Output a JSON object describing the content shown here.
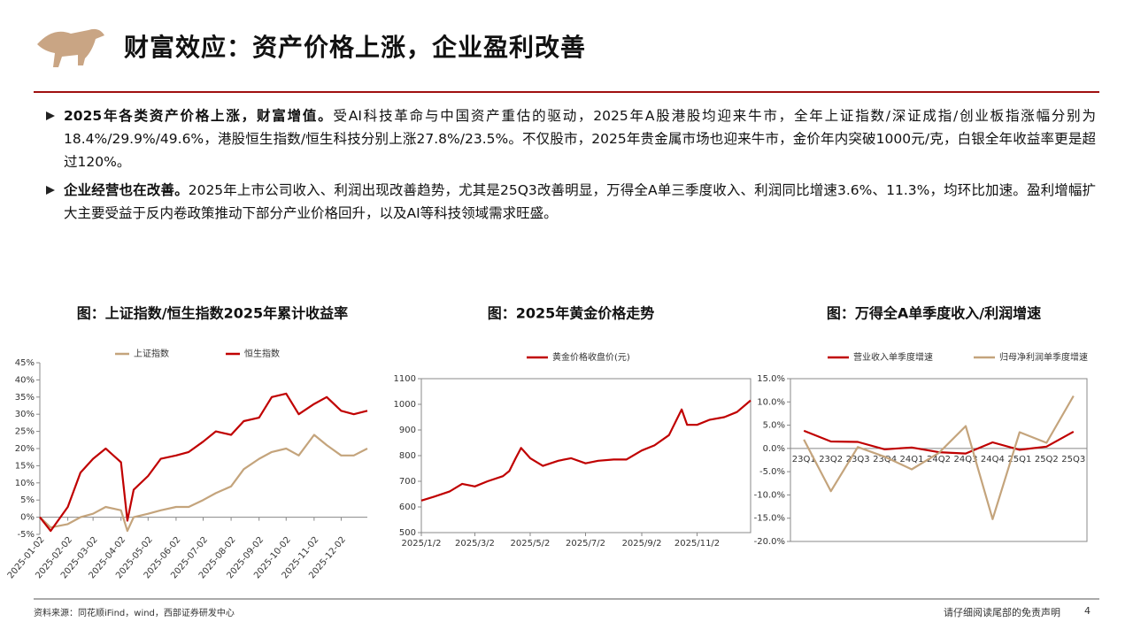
{
  "header": {
    "title": "财富效应：资产价格上涨，企业盈利改善"
  },
  "bullets": [
    {
      "lead": "2025年各类资产价格上涨，财富增值。",
      "body": "受AI科技革命与中国资产重估的驱动，2025年A股港股均迎来牛市，全年上证指数/深证成指/创业板指涨幅分别为18.4%/29.9%/49.6%，港股恒生指数/恒生科技分别上涨27.8%/23.5%。不仅股市，2025年贵金属市场也迎来牛市，金价年内突破1000元/克，白银全年收益率更是超过120%。"
    },
    {
      "lead": "企业经营也在改善。",
      "body": "2025年上市公司收入、利润出现改善趋势，尤其是25Q3改善明显，万得全A单三季度收入、利润同比增速3.6%、11.3%，均环比加速。盈利增幅扩大主要受益于反内卷政策推动下部分产业价格回升，以及AI等科技领域需求旺盛。"
    }
  ],
  "chart_data": [
    {
      "type": "line",
      "title": "图：上证指数/恒生指数2025年累计收益率",
      "legend": "top",
      "grid": false,
      "x": [
        "2025-01-02",
        "2025-01-14",
        "2025-02-02",
        "2025-02-16",
        "2025-03-02",
        "2025-03-16",
        "2025-04-02",
        "2025-04-09",
        "2025-04-16",
        "2025-05-02",
        "2025-05-16",
        "2025-06-02",
        "2025-06-16",
        "2025-07-02",
        "2025-07-16",
        "2025-08-02",
        "2025-08-16",
        "2025-09-02",
        "2025-09-16",
        "2025-10-02",
        "2025-10-16",
        "2025-11-02",
        "2025-11-16",
        "2025-12-02",
        "2025-12-16",
        "2025-12-31"
      ],
      "series": [
        {
          "name": "上证指数",
          "color": "#c4a47c",
          "values": [
            0,
            -3,
            -2,
            0,
            1,
            3,
            2,
            -4,
            0,
            1,
            2,
            3,
            3,
            5,
            7,
            9,
            14,
            17,
            19,
            20,
            18,
            24,
            21,
            18,
            18,
            20
          ]
        },
        {
          "name": "恒生指数",
          "color": "#c00000",
          "values": [
            0,
            -4,
            3,
            13,
            17,
            20,
            16,
            -1,
            8,
            12,
            17,
            18,
            19,
            22,
            25,
            24,
            28,
            29,
            35,
            36,
            30,
            33,
            35,
            31,
            30,
            31
          ]
        }
      ],
      "xlim": [
        "2025-01-02",
        "2025-12-31"
      ],
      "xticks": [
        "2025-01-02",
        "2025-02-02",
        "2025-03-02",
        "2025-04-02",
        "2025-05-02",
        "2025-06-02",
        "2025-07-02",
        "2025-08-02",
        "2025-09-02",
        "2025-10-02",
        "2025-11-02",
        "2025-12-02"
      ],
      "ylim": [
        -5,
        45
      ],
      "yticks": [
        {
          "value": -5,
          "label": "-5%"
        },
        {
          "value": 0,
          "label": "0%"
        },
        {
          "value": 5,
          "label": "5%"
        },
        {
          "value": 10,
          "label": "10%"
        },
        {
          "value": 15,
          "label": "15%"
        },
        {
          "value": 20,
          "label": "20%"
        },
        {
          "value": 25,
          "label": "25%"
        },
        {
          "value": 30,
          "label": "30%"
        },
        {
          "value": 35,
          "label": "35%"
        },
        {
          "value": 40,
          "label": "40%"
        },
        {
          "value": 45,
          "label": "45%"
        }
      ]
    },
    {
      "type": "line",
      "title": "图：2025年黄金价格走势",
      "legend": "top",
      "grid": false,
      "x": [
        "2025/1/2",
        "2025/1/16",
        "2025/2/2",
        "2025/2/16",
        "2025/3/2",
        "2025/3/16",
        "2025/4/2",
        "2025/4/9",
        "2025/4/16",
        "2025/4/22",
        "2025/5/2",
        "2025/5/16",
        "2025/6/2",
        "2025/6/16",
        "2025/7/2",
        "2025/7/16",
        "2025/8/2",
        "2025/8/16",
        "2025/9/2",
        "2025/9/16",
        "2025/10/2",
        "2025/10/16",
        "2025/10/22",
        "2025/11/2",
        "2025/11/16",
        "2025/12/2",
        "2025/12/16",
        "2025/12/31"
      ],
      "series": [
        {
          "name": "黄金价格收盘价(元)",
          "color": "#c00000",
          "values": [
            625,
            640,
            660,
            690,
            680,
            700,
            720,
            740,
            790,
            830,
            790,
            760,
            780,
            790,
            770,
            780,
            785,
            785,
            820,
            840,
            880,
            980,
            920,
            920,
            940,
            950,
            970,
            1015
          ]
        }
      ],
      "xlim": [
        "2025/1/2",
        "2025/12/31"
      ],
      "xticks": [
        "2025/1/2",
        "2025/3/2",
        "2025/5/2",
        "2025/7/2",
        "2025/9/2",
        "2025/11/2"
      ],
      "ylim": [
        500,
        1100
      ],
      "yticks": [
        500,
        600,
        700,
        800,
        900,
        1000,
        1100
      ]
    },
    {
      "type": "line",
      "title": "图：万得全A单季度收入/利润增速",
      "legend": "top",
      "grid": false,
      "categories": [
        "23Q1",
        "23Q2",
        "23Q3",
        "23Q4",
        "24Q1",
        "24Q2",
        "24Q3",
        "24Q4",
        "25Q1",
        "25Q2",
        "25Q3"
      ],
      "series": [
        {
          "name": "营业收入单季度增速",
          "color": "#c00000",
          "values": [
            3.8,
            1.5,
            1.4,
            -0.2,
            0.2,
            -0.8,
            -1.1,
            1.3,
            -0.3,
            0.4,
            3.6
          ]
        },
        {
          "name": "归母净利润单季度增速",
          "color": "#c4a47c",
          "values": [
            1.9,
            -9.2,
            0.3,
            -1.8,
            -4.5,
            -1.0,
            4.8,
            -15.2,
            3.5,
            1.2,
            11.3
          ]
        }
      ],
      "ylim": [
        -20,
        15
      ],
      "yticks": [
        {
          "value": -20,
          "label": "-20.0%"
        },
        {
          "value": -15,
          "label": "-15.0%"
        },
        {
          "value": -10,
          "label": "-10.0%"
        },
        {
          "value": -5,
          "label": "-5.0%"
        },
        {
          "value": 0,
          "label": "0.0%"
        },
        {
          "value": 5,
          "label": "5.0%"
        },
        {
          "value": 10,
          "label": "10.0%"
        },
        {
          "value": 15,
          "label": "15.0%"
        }
      ]
    }
  ],
  "footer": {
    "source": "资料来源：同花顺iFind，wind，西部证券研发中心",
    "disclaimer": "请仔细阅读尾部的免责声明",
    "page": "4"
  }
}
